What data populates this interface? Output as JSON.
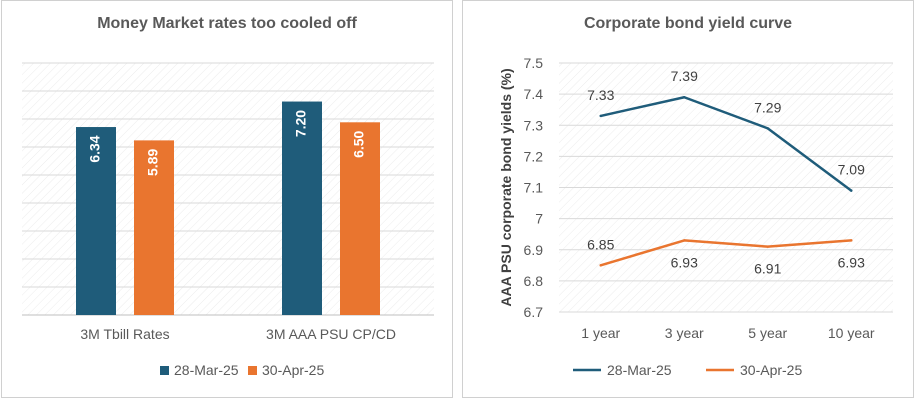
{
  "chart_data": [
    {
      "type": "bar",
      "title": "Money Market rates too cooled off",
      "categories": [
        "3M Tbill Rates",
        "3M AAA PSU CP/CD"
      ],
      "series": [
        {
          "name": "28-Mar-25",
          "values": [
            6.34,
            7.2
          ],
          "labels": [
            "6.34",
            "7.20"
          ],
          "color": "#1f5c7a"
        },
        {
          "name": "30-Apr-25",
          "values": [
            5.89,
            6.5
          ],
          "labels": [
            "5.89",
            "6.50"
          ],
          "color": "#e9752f"
        }
      ],
      "ylim": [
        0,
        8.5
      ],
      "grid": true,
      "legend": "bottom"
    },
    {
      "type": "line",
      "title": "Corporate bond yield curve",
      "categories": [
        "1 year",
        "3 year",
        "5 year",
        "10 year"
      ],
      "series": [
        {
          "name": "28-Mar-25",
          "values": [
            7.33,
            7.39,
            7.29,
            7.09
          ],
          "labels": [
            "7.33",
            "7.39",
            "7.29",
            "7.09"
          ],
          "color": "#1f5c7a"
        },
        {
          "name": "30-Apr-25",
          "values": [
            6.85,
            6.93,
            6.91,
            6.93
          ],
          "labels": [
            "6.85",
            "6.93",
            "6.91",
            "6.93"
          ],
          "color": "#e9752f"
        }
      ],
      "ylabel": "AAA PSU corporate bond yields (%)",
      "ylim": [
        6.7,
        7.5
      ],
      "yticks": [
        "6.7",
        "6.8",
        "6.9",
        "7",
        "7.1",
        "7.2",
        "7.3",
        "7.4",
        "7.5"
      ],
      "grid": true,
      "legend": "bottom"
    }
  ]
}
